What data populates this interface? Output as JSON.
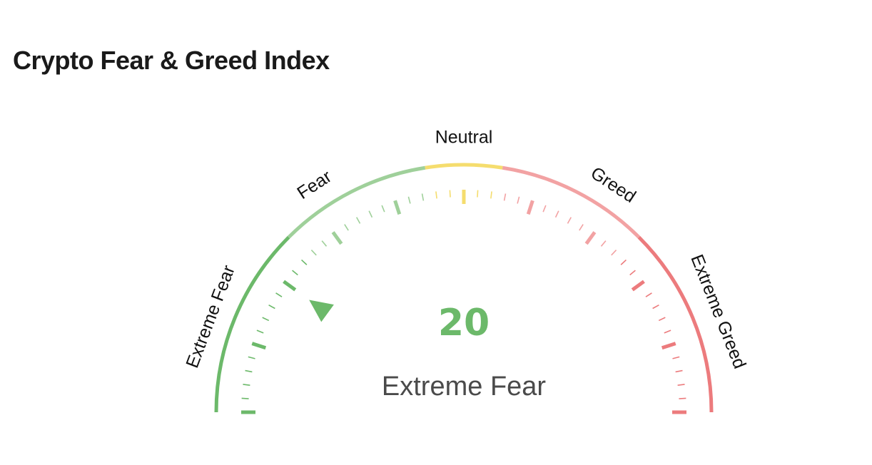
{
  "title": "Crypto Fear & Greed Index",
  "chart_data": {
    "type": "gauge",
    "value": 20,
    "value_text": "20",
    "status": "Extreme Fear",
    "range": [
      0,
      100
    ],
    "zones": [
      {
        "label": "Extreme Fear",
        "from": 0,
        "to": 25,
        "color": "#6cb96a"
      },
      {
        "label": "Fear",
        "from": 25,
        "to": 45,
        "color": "#9fd09a"
      },
      {
        "label": "Neutral",
        "from": 45,
        "to": 55,
        "color": "#f5dd6e"
      },
      {
        "label": "Greed",
        "from": 55,
        "to": 75,
        "color": "#f2a2a3"
      },
      {
        "label": "Extreme Greed",
        "from": 75,
        "to": 100,
        "color": "#ec7b7d"
      }
    ],
    "value_color": "#6cb96a",
    "status_color": "#4a4a4a"
  }
}
